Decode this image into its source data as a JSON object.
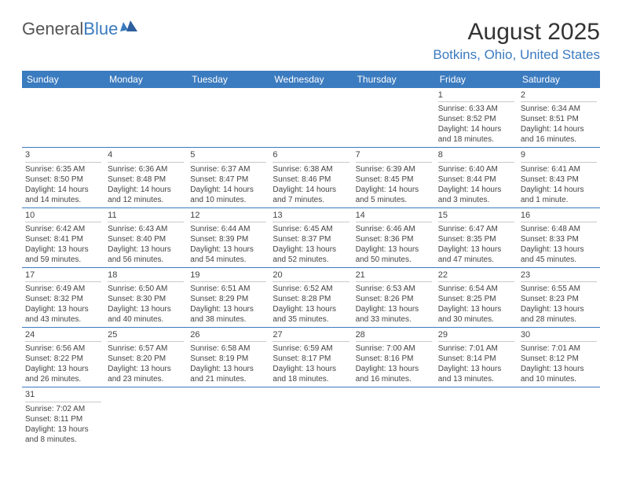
{
  "logo": {
    "general": "General",
    "blue": "Blue"
  },
  "title": "August 2025",
  "location": "Botkins, Ohio, United States",
  "colors": {
    "accent": "#3b7bbf",
    "text": "#444444",
    "bg": "#ffffff",
    "divider": "#c9c9c9"
  },
  "weekdays": [
    "Sunday",
    "Monday",
    "Tuesday",
    "Wednesday",
    "Thursday",
    "Friday",
    "Saturday"
  ],
  "weeks": [
    [
      null,
      null,
      null,
      null,
      null,
      {
        "d": "1",
        "sr": "Sunrise: 6:33 AM",
        "ss": "Sunset: 8:52 PM",
        "dl": "Daylight: 14 hours and 18 minutes."
      },
      {
        "d": "2",
        "sr": "Sunrise: 6:34 AM",
        "ss": "Sunset: 8:51 PM",
        "dl": "Daylight: 14 hours and 16 minutes."
      }
    ],
    [
      {
        "d": "3",
        "sr": "Sunrise: 6:35 AM",
        "ss": "Sunset: 8:50 PM",
        "dl": "Daylight: 14 hours and 14 minutes."
      },
      {
        "d": "4",
        "sr": "Sunrise: 6:36 AM",
        "ss": "Sunset: 8:48 PM",
        "dl": "Daylight: 14 hours and 12 minutes."
      },
      {
        "d": "5",
        "sr": "Sunrise: 6:37 AM",
        "ss": "Sunset: 8:47 PM",
        "dl": "Daylight: 14 hours and 10 minutes."
      },
      {
        "d": "6",
        "sr": "Sunrise: 6:38 AM",
        "ss": "Sunset: 8:46 PM",
        "dl": "Daylight: 14 hours and 7 minutes."
      },
      {
        "d": "7",
        "sr": "Sunrise: 6:39 AM",
        "ss": "Sunset: 8:45 PM",
        "dl": "Daylight: 14 hours and 5 minutes."
      },
      {
        "d": "8",
        "sr": "Sunrise: 6:40 AM",
        "ss": "Sunset: 8:44 PM",
        "dl": "Daylight: 14 hours and 3 minutes."
      },
      {
        "d": "9",
        "sr": "Sunrise: 6:41 AM",
        "ss": "Sunset: 8:43 PM",
        "dl": "Daylight: 14 hours and 1 minute."
      }
    ],
    [
      {
        "d": "10",
        "sr": "Sunrise: 6:42 AM",
        "ss": "Sunset: 8:41 PM",
        "dl": "Daylight: 13 hours and 59 minutes."
      },
      {
        "d": "11",
        "sr": "Sunrise: 6:43 AM",
        "ss": "Sunset: 8:40 PM",
        "dl": "Daylight: 13 hours and 56 minutes."
      },
      {
        "d": "12",
        "sr": "Sunrise: 6:44 AM",
        "ss": "Sunset: 8:39 PM",
        "dl": "Daylight: 13 hours and 54 minutes."
      },
      {
        "d": "13",
        "sr": "Sunrise: 6:45 AM",
        "ss": "Sunset: 8:37 PM",
        "dl": "Daylight: 13 hours and 52 minutes."
      },
      {
        "d": "14",
        "sr": "Sunrise: 6:46 AM",
        "ss": "Sunset: 8:36 PM",
        "dl": "Daylight: 13 hours and 50 minutes."
      },
      {
        "d": "15",
        "sr": "Sunrise: 6:47 AM",
        "ss": "Sunset: 8:35 PM",
        "dl": "Daylight: 13 hours and 47 minutes."
      },
      {
        "d": "16",
        "sr": "Sunrise: 6:48 AM",
        "ss": "Sunset: 8:33 PM",
        "dl": "Daylight: 13 hours and 45 minutes."
      }
    ],
    [
      {
        "d": "17",
        "sr": "Sunrise: 6:49 AM",
        "ss": "Sunset: 8:32 PM",
        "dl": "Daylight: 13 hours and 43 minutes."
      },
      {
        "d": "18",
        "sr": "Sunrise: 6:50 AM",
        "ss": "Sunset: 8:30 PM",
        "dl": "Daylight: 13 hours and 40 minutes."
      },
      {
        "d": "19",
        "sr": "Sunrise: 6:51 AM",
        "ss": "Sunset: 8:29 PM",
        "dl": "Daylight: 13 hours and 38 minutes."
      },
      {
        "d": "20",
        "sr": "Sunrise: 6:52 AM",
        "ss": "Sunset: 8:28 PM",
        "dl": "Daylight: 13 hours and 35 minutes."
      },
      {
        "d": "21",
        "sr": "Sunrise: 6:53 AM",
        "ss": "Sunset: 8:26 PM",
        "dl": "Daylight: 13 hours and 33 minutes."
      },
      {
        "d": "22",
        "sr": "Sunrise: 6:54 AM",
        "ss": "Sunset: 8:25 PM",
        "dl": "Daylight: 13 hours and 30 minutes."
      },
      {
        "d": "23",
        "sr": "Sunrise: 6:55 AM",
        "ss": "Sunset: 8:23 PM",
        "dl": "Daylight: 13 hours and 28 minutes."
      }
    ],
    [
      {
        "d": "24",
        "sr": "Sunrise: 6:56 AM",
        "ss": "Sunset: 8:22 PM",
        "dl": "Daylight: 13 hours and 26 minutes."
      },
      {
        "d": "25",
        "sr": "Sunrise: 6:57 AM",
        "ss": "Sunset: 8:20 PM",
        "dl": "Daylight: 13 hours and 23 minutes."
      },
      {
        "d": "26",
        "sr": "Sunrise: 6:58 AM",
        "ss": "Sunset: 8:19 PM",
        "dl": "Daylight: 13 hours and 21 minutes."
      },
      {
        "d": "27",
        "sr": "Sunrise: 6:59 AM",
        "ss": "Sunset: 8:17 PM",
        "dl": "Daylight: 13 hours and 18 minutes."
      },
      {
        "d": "28",
        "sr": "Sunrise: 7:00 AM",
        "ss": "Sunset: 8:16 PM",
        "dl": "Daylight: 13 hours and 16 minutes."
      },
      {
        "d": "29",
        "sr": "Sunrise: 7:01 AM",
        "ss": "Sunset: 8:14 PM",
        "dl": "Daylight: 13 hours and 13 minutes."
      },
      {
        "d": "30",
        "sr": "Sunrise: 7:01 AM",
        "ss": "Sunset: 8:12 PM",
        "dl": "Daylight: 13 hours and 10 minutes."
      }
    ],
    [
      {
        "d": "31",
        "sr": "Sunrise: 7:02 AM",
        "ss": "Sunset: 8:11 PM",
        "dl": "Daylight: 13 hours and 8 minutes."
      },
      null,
      null,
      null,
      null,
      null,
      null
    ]
  ]
}
